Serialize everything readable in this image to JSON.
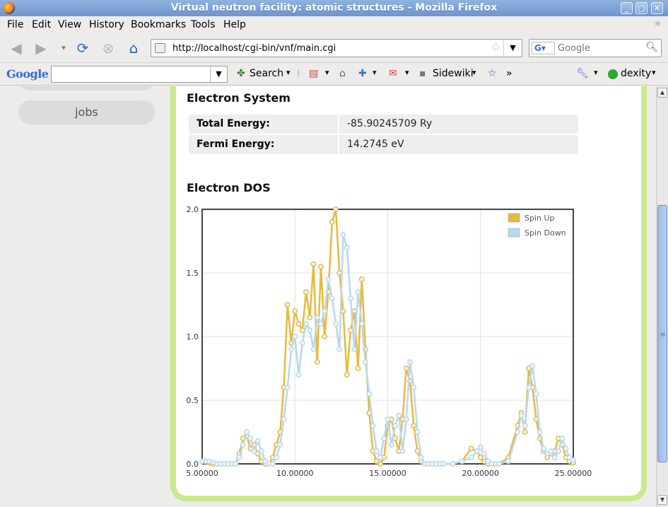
{
  "window": {
    "title": "Virtual neutron facility: atomic structures - Mozilla Firefox"
  },
  "menu": {
    "items": [
      "File",
      "Edit",
      "View",
      "History",
      "Bookmarks",
      "Tools",
      "Help"
    ]
  },
  "nav": {
    "url": "http://localhost/cgi-bin/vnf/main.cgi",
    "search_placeholder": "Google",
    "search_engine": "G"
  },
  "google_toolbar": {
    "logo": "Google",
    "search_label": "Search",
    "sidewiki_label": "Sidewiki",
    "more": "»",
    "user": "dexity"
  },
  "sidebar": {
    "items": [
      {
        "label": ""
      },
      {
        "label": "jobs"
      }
    ]
  },
  "electron_system": {
    "heading": "Electron System",
    "rows": [
      {
        "key": "Total Energy:",
        "value": "-85.90245709 Ry"
      },
      {
        "key": "Fermi Energy:",
        "value": "14.2745 eV"
      }
    ]
  },
  "dos": {
    "heading": "Electron DOS"
  },
  "colors": {
    "spin_up": "#e8b93c",
    "spin_down": "#b8d8ee",
    "panel_border": "#c9e98b"
  },
  "chart_data": {
    "type": "line",
    "title": "",
    "xlabel": "",
    "ylabel": "",
    "xlim": [
      5.0,
      25.0
    ],
    "ylim": [
      0.0,
      2.0
    ],
    "xticks": [
      "5.00000",
      "10.00000",
      "15.00000",
      "20.00000",
      "25.00000"
    ],
    "yticks": [
      "0.0",
      "0.5",
      "1.0",
      "1.5",
      "2.0"
    ],
    "grid": true,
    "legend": "top-right",
    "series": [
      {
        "name": "Spin Up",
        "color": "#e8b93c",
        "x": [
          5.0,
          5.2,
          5.4,
          5.6,
          5.8,
          6.0,
          6.2,
          6.4,
          6.6,
          6.8,
          7.0,
          7.2,
          7.4,
          7.6,
          7.8,
          8.0,
          8.2,
          8.4,
          8.6,
          8.8,
          9.0,
          9.2,
          9.4,
          9.6,
          9.8,
          10.0,
          10.2,
          10.4,
          10.6,
          10.8,
          11.0,
          11.2,
          11.4,
          11.6,
          11.8,
          12.0,
          12.2,
          12.4,
          12.6,
          12.8,
          13.0,
          13.2,
          13.4,
          13.6,
          13.8,
          14.0,
          14.2,
          14.4,
          14.6,
          14.8,
          15.0,
          15.2,
          15.4,
          15.6,
          15.8,
          16.0,
          16.2,
          16.4,
          16.6,
          16.8,
          17.0,
          17.2,
          17.4,
          17.6,
          17.8,
          18.0,
          18.5,
          19.0,
          19.5,
          19.8,
          20.0,
          20.2,
          20.4,
          20.6,
          20.8,
          21.0,
          21.5,
          22.0,
          22.2,
          22.4,
          22.6,
          22.8,
          23.0,
          23.2,
          23.4,
          23.6,
          23.8,
          24.0,
          24.2,
          24.4,
          24.6,
          24.8,
          25.0
        ],
        "y": [
          0.02,
          0.02,
          0.01,
          0.0,
          0.0,
          0.0,
          0.0,
          0.0,
          0.0,
          0.0,
          0.08,
          0.2,
          0.22,
          0.12,
          0.15,
          0.08,
          0.02,
          0.0,
          0.0,
          0.05,
          0.15,
          0.25,
          0.6,
          1.25,
          0.95,
          1.2,
          1.1,
          1.05,
          1.35,
          1.15,
          1.57,
          0.8,
          1.55,
          1.0,
          1.35,
          1.9,
          2.0,
          1.5,
          1.2,
          0.7,
          1.05,
          1.2,
          0.75,
          1.45,
          0.9,
          0.4,
          0.1,
          0.02,
          0.0,
          0.05,
          0.3,
          0.35,
          0.2,
          0.1,
          0.35,
          0.75,
          0.65,
          0.3,
          0.1,
          0.02,
          0.0,
          0.0,
          0.0,
          0.0,
          0.0,
          0.0,
          0.0,
          0.02,
          0.12,
          0.1,
          0.05,
          0.02,
          0.0,
          0.0,
          0.0,
          0.0,
          0.05,
          0.3,
          0.4,
          0.25,
          0.75,
          0.6,
          0.35,
          0.2,
          0.1,
          0.05,
          0.08,
          0.1,
          0.2,
          0.15,
          0.05,
          0.02,
          0.01
        ]
      },
      {
        "name": "Spin Down",
        "color": "#b8d8ee",
        "x": [
          5.0,
          5.2,
          5.4,
          5.6,
          5.8,
          6.0,
          6.2,
          6.4,
          6.6,
          6.8,
          7.0,
          7.2,
          7.4,
          7.6,
          7.8,
          8.0,
          8.2,
          8.4,
          8.6,
          8.8,
          9.0,
          9.2,
          9.4,
          9.6,
          9.8,
          10.0,
          10.2,
          10.4,
          10.6,
          10.8,
          11.0,
          11.2,
          11.4,
          11.6,
          11.8,
          12.0,
          12.2,
          12.4,
          12.6,
          12.8,
          13.0,
          13.2,
          13.4,
          13.6,
          13.8,
          14.0,
          14.2,
          14.4,
          14.6,
          14.8,
          15.0,
          15.2,
          15.4,
          15.6,
          15.8,
          16.0,
          16.2,
          16.4,
          16.6,
          16.8,
          17.0,
          17.2,
          17.4,
          17.6,
          17.8,
          18.0,
          18.5,
          19.0,
          19.5,
          19.8,
          20.0,
          20.2,
          20.4,
          20.6,
          20.8,
          21.0,
          21.5,
          22.0,
          22.2,
          22.4,
          22.6,
          22.8,
          23.0,
          23.2,
          23.4,
          23.6,
          23.8,
          24.0,
          24.2,
          24.4,
          24.6,
          24.8,
          25.0
        ],
        "y": [
          0.02,
          0.02,
          0.02,
          0.01,
          0.0,
          0.0,
          0.0,
          0.0,
          0.0,
          0.0,
          0.05,
          0.15,
          0.25,
          0.2,
          0.1,
          0.18,
          0.1,
          0.02,
          0.0,
          0.0,
          0.05,
          0.15,
          0.35,
          0.6,
          0.9,
          1.0,
          0.7,
          0.95,
          1.1,
          1.05,
          0.9,
          1.15,
          1.1,
          1.2,
          1.45,
          1.3,
          1.1,
          0.9,
          1.8,
          1.7,
          1.3,
          0.9,
          1.35,
          1.1,
          0.8,
          0.55,
          0.3,
          0.1,
          0.05,
          0.2,
          0.35,
          0.15,
          0.3,
          0.38,
          0.1,
          0.35,
          0.8,
          0.6,
          0.25,
          0.05,
          0.0,
          0.0,
          0.0,
          0.0,
          0.0,
          0.0,
          0.0,
          0.02,
          0.05,
          0.1,
          0.13,
          0.08,
          0.02,
          0.0,
          0.0,
          0.0,
          0.02,
          0.25,
          0.38,
          0.3,
          0.6,
          0.77,
          0.55,
          0.25,
          0.12,
          0.08,
          0.1,
          0.05,
          0.1,
          0.2,
          0.12,
          0.05,
          0.03
        ]
      }
    ]
  }
}
